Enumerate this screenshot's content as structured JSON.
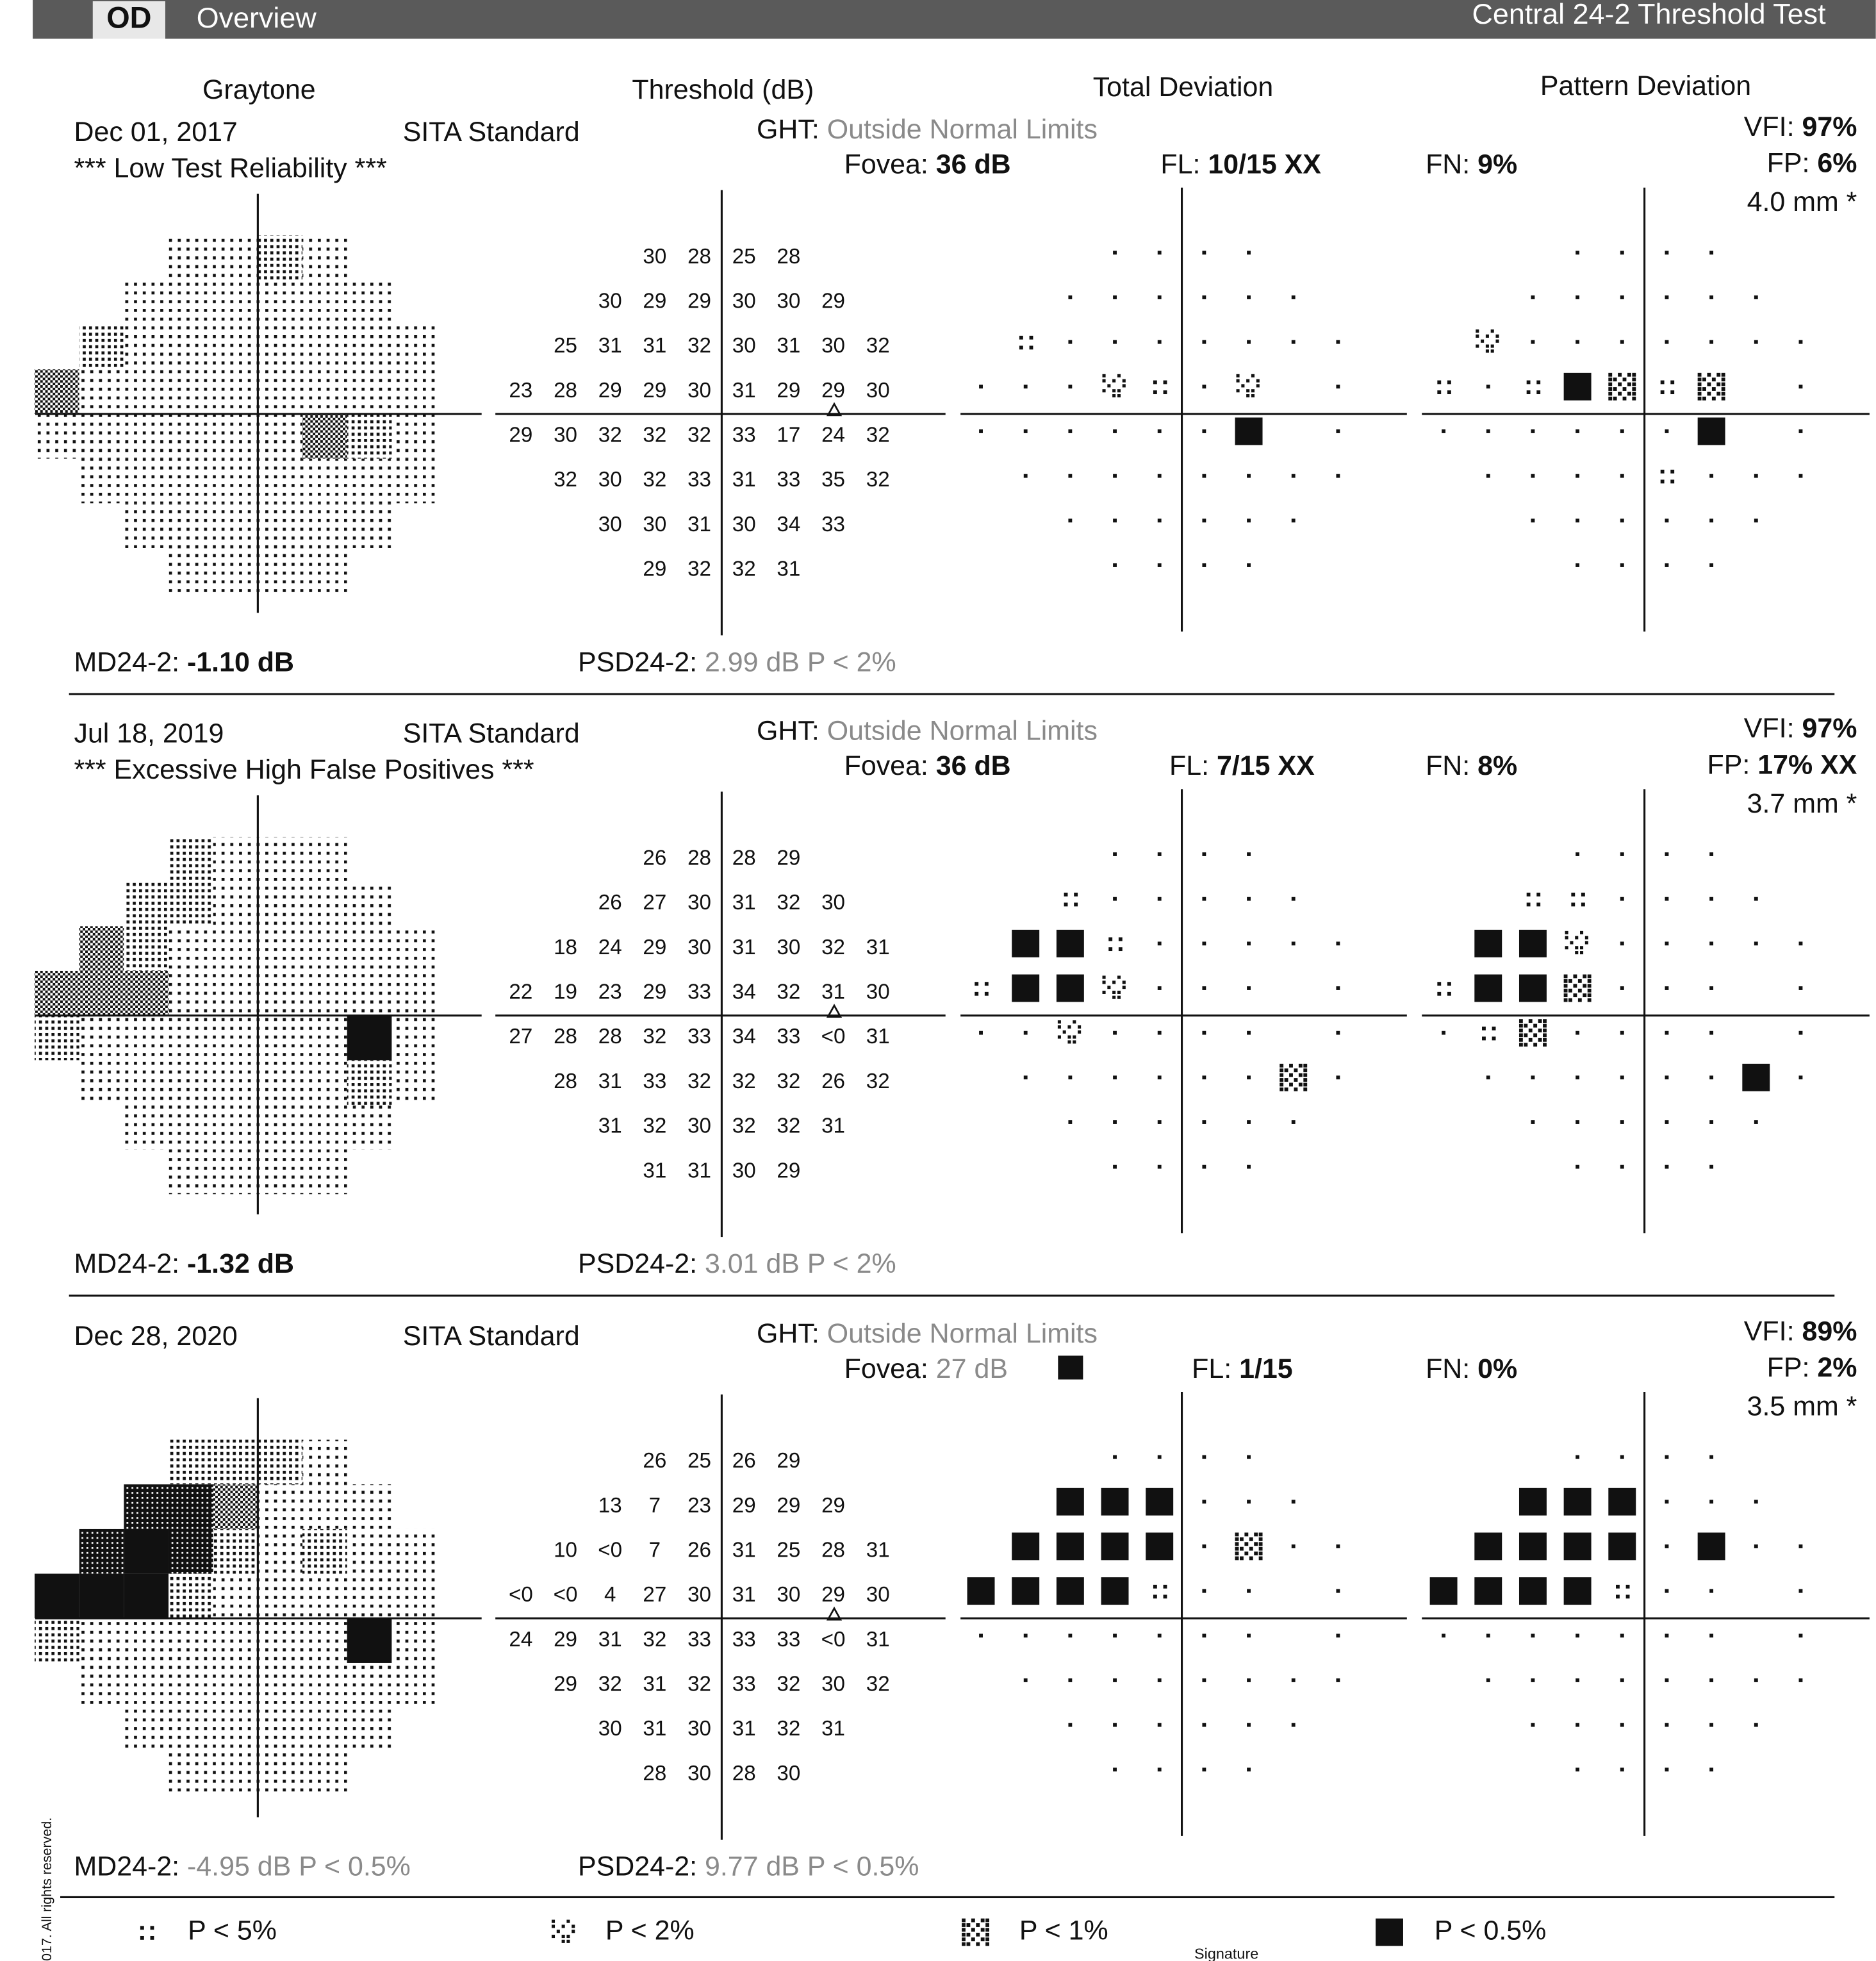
{
  "header": {
    "eye": "OD",
    "title": "Overview",
    "test": "Central 24-2 Threshold Test"
  },
  "columns": [
    "Graytone",
    "Threshold (dB)",
    "Total Deviation",
    "Pattern Deviation"
  ],
  "tests": [
    {
      "date": "Dec 01, 2017",
      "strategy": "SITA Standard",
      "ght_label": "GHT:",
      "ght": "Outside Normal Limits",
      "note": "*** Low Test Reliability ***",
      "fovea_label": "Fovea:",
      "fovea": "36 dB",
      "fl_label": "FL:",
      "fl": "10/15 XX",
      "fn_label": "FN:",
      "fn": "9%",
      "vfi_label": "VFI:",
      "vfi": "97%",
      "fp_label": "FP:",
      "fp": "6%",
      "pupil": "4.0 mm *",
      "md_label": "MD24-2:",
      "md": "-1.10 dB",
      "psd_label": "PSD24-2:",
      "psd": "2.99 dB P < 2%",
      "threshold": [
        [
          30,
          28,
          25,
          28
        ],
        [
          30,
          29,
          29,
          30,
          30,
          29
        ],
        [
          25,
          31,
          31,
          32,
          30,
          31,
          30,
          32
        ],
        [
          23,
          28,
          29,
          29,
          30,
          31,
          29,
          29,
          30
        ],
        [
          29,
          30,
          32,
          32,
          32,
          33,
          17,
          24,
          32
        ],
        [
          32,
          30,
          32,
          33,
          31,
          33,
          35,
          32
        ],
        [
          30,
          30,
          31,
          30,
          34,
          33
        ],
        [
          29,
          32,
          32,
          31
        ]
      ],
      "total_deviation": [
        [
          0,
          0,
          0,
          0
        ],
        [
          0,
          0,
          0,
          0,
          0,
          0
        ],
        [
          1,
          0,
          0,
          0,
          0,
          0,
          0,
          0
        ],
        [
          0,
          0,
          0,
          2,
          1,
          0,
          2,
          null,
          0
        ],
        [
          0,
          0,
          0,
          0,
          0,
          0,
          4,
          null,
          0
        ],
        [
          0,
          0,
          0,
          0,
          0,
          0,
          0,
          0
        ],
        [
          0,
          0,
          0,
          0,
          0,
          0
        ],
        [
          0,
          0,
          0,
          0
        ]
      ],
      "pattern_deviation": [
        [
          0,
          0,
          0,
          0
        ],
        [
          0,
          0,
          0,
          0,
          0,
          0
        ],
        [
          2,
          0,
          0,
          0,
          0,
          0,
          0,
          0
        ],
        [
          1,
          0,
          1,
          4,
          3,
          1,
          3,
          null,
          0
        ],
        [
          0,
          0,
          0,
          0,
          0,
          0,
          4,
          null,
          0
        ],
        [
          0,
          0,
          0,
          0,
          1,
          0,
          0,
          0
        ],
        [
          0,
          0,
          0,
          0,
          0,
          0
        ],
        [
          0,
          0,
          0,
          0
        ]
      ]
    },
    {
      "date": "Jul 18, 2019",
      "strategy": "SITA Standard",
      "ght_label": "GHT:",
      "ght": "Outside Normal Limits",
      "note": "*** Excessive High False Positives ***",
      "fovea_label": "Fovea:",
      "fovea": "36 dB",
      "fl_label": "FL:",
      "fl": "7/15 XX",
      "fn_label": "FN:",
      "fn": "8%",
      "vfi_label": "VFI:",
      "vfi": "97%",
      "fp_label": "FP:",
      "fp": "17% XX",
      "pupil": "3.7 mm *",
      "md_label": "MD24-2:",
      "md": "-1.32 dB",
      "psd_label": "PSD24-2:",
      "psd": "3.01 dB P < 2%",
      "threshold": [
        [
          26,
          28,
          28,
          29
        ],
        [
          26,
          27,
          30,
          31,
          32,
          30
        ],
        [
          18,
          24,
          29,
          30,
          31,
          30,
          32,
          31
        ],
        [
          22,
          19,
          23,
          29,
          33,
          34,
          32,
          31,
          30
        ],
        [
          27,
          28,
          28,
          32,
          33,
          34,
          33,
          "<0",
          31
        ],
        [
          28,
          31,
          33,
          32,
          32,
          32,
          26,
          32
        ],
        [
          31,
          32,
          30,
          32,
          32,
          31
        ],
        [
          31,
          31,
          30,
          29
        ]
      ],
      "total_deviation": [
        [
          0,
          0,
          0,
          0
        ],
        [
          1,
          0,
          0,
          0,
          0,
          0
        ],
        [
          4,
          4,
          1,
          0,
          0,
          0,
          0,
          0
        ],
        [
          1,
          4,
          4,
          2,
          0,
          0,
          0,
          null,
          0
        ],
        [
          0,
          0,
          2,
          0,
          0,
          0,
          0,
          null,
          0
        ],
        [
          0,
          0,
          0,
          0,
          0,
          0,
          3,
          0
        ],
        [
          0,
          0,
          0,
          0,
          0,
          0
        ],
        [
          0,
          0,
          0,
          0
        ]
      ],
      "pattern_deviation": [
        [
          0,
          0,
          0,
          0
        ],
        [
          1,
          1,
          0,
          0,
          0,
          0
        ],
        [
          4,
          4,
          2,
          0,
          0,
          0,
          0,
          0
        ],
        [
          1,
          4,
          4,
          3,
          0,
          0,
          0,
          null,
          0
        ],
        [
          0,
          1,
          3,
          0,
          0,
          0,
          0,
          null,
          0
        ],
        [
          0,
          0,
          0,
          0,
          0,
          0,
          4,
          0
        ],
        [
          0,
          0,
          0,
          0,
          0,
          0
        ],
        [
          0,
          0,
          0,
          0
        ]
      ]
    },
    {
      "date": "Dec 28, 2020",
      "strategy": "SITA Standard",
      "ght_label": "GHT:",
      "ght": "Outside Normal Limits",
      "fovea_label": "Fovea:",
      "fovea": "27 dB",
      "fl_label": "FL:",
      "fl": "1/15",
      "fn_label": "FN:",
      "fn": "0%",
      "vfi_label": "VFI:",
      "vfi": "89%",
      "fp_label": "FP:",
      "fp": "2%",
      "pupil": "3.5 mm *",
      "md_label": "MD24-2:",
      "md": "-4.95 dB P < 0.5%",
      "psd_label": "PSD24-2:",
      "psd": "9.77 dB P < 0.5%",
      "threshold": [
        [
          26,
          25,
          26,
          29
        ],
        [
          13,
          7,
          23,
          29,
          29,
          29
        ],
        [
          10,
          "<0",
          7,
          26,
          31,
          25,
          28,
          31
        ],
        [
          "<0",
          "<0",
          4,
          27,
          30,
          31,
          30,
          29,
          30
        ],
        [
          24,
          29,
          31,
          32,
          33,
          33,
          33,
          "<0",
          31
        ],
        [
          29,
          32,
          31,
          32,
          33,
          32,
          30,
          32
        ],
        [
          30,
          31,
          30,
          31,
          32,
          31
        ],
        [
          28,
          30,
          28,
          30
        ]
      ],
      "total_deviation": [
        [
          0,
          0,
          0,
          0
        ],
        [
          4,
          4,
          4,
          0,
          0,
          0
        ],
        [
          4,
          4,
          4,
          4,
          0,
          3,
          0,
          0
        ],
        [
          4,
          4,
          4,
          4,
          1,
          0,
          0,
          null,
          0
        ],
        [
          0,
          0,
          0,
          0,
          0,
          0,
          0,
          null,
          0
        ],
        [
          0,
          0,
          0,
          0,
          0,
          0,
          0,
          0
        ],
        [
          0,
          0,
          0,
          0,
          0,
          0
        ],
        [
          0,
          0,
          0,
          0
        ]
      ],
      "pattern_deviation": [
        [
          0,
          0,
          0,
          0
        ],
        [
          4,
          4,
          4,
          0,
          0,
          0
        ],
        [
          4,
          4,
          4,
          4,
          0,
          4,
          0,
          0
        ],
        [
          4,
          4,
          4,
          4,
          1,
          0,
          0,
          null,
          0
        ],
        [
          0,
          0,
          0,
          0,
          0,
          0,
          0,
          null,
          0
        ],
        [
          0,
          0,
          0,
          0,
          0,
          0,
          0,
          0
        ],
        [
          0,
          0,
          0,
          0,
          0,
          0
        ],
        [
          0,
          0,
          0,
          0
        ]
      ]
    }
  ],
  "legend": [
    "P < 5%",
    "P < 2%",
    "P < 1%",
    "P < 0.5%"
  ],
  "footer": {
    "signature": "Signature",
    "copyright": "017. All rights reserved."
  }
}
